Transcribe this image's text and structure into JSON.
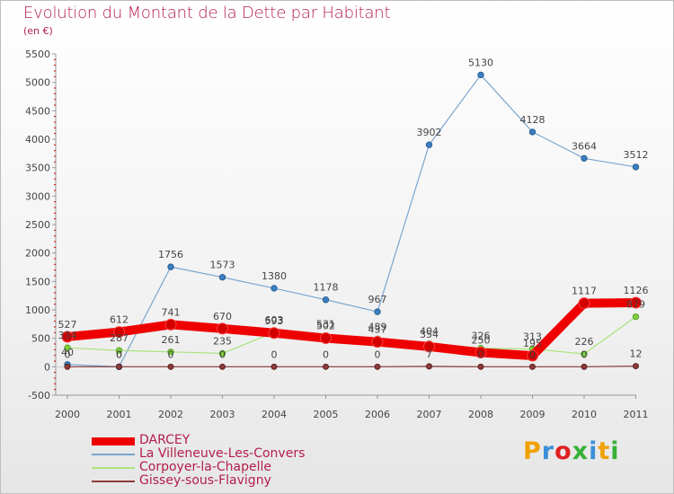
{
  "header": {
    "title": "Evolution du Montant de la Dette par Habitant",
    "unit": "(en €)"
  },
  "logo": {
    "text": "Proxiti",
    "colors": [
      "#f0a000",
      "#3a8fd8",
      "#e02020",
      "#38b038",
      "#3a8fd8",
      "#f0a000",
      "#38b038"
    ]
  },
  "chart_data": {
    "type": "line",
    "title": "Evolution du Montant de la Dette par Habitant",
    "subtitle": "(en €)",
    "xlabel": "",
    "ylabel": "",
    "x": [
      "2000",
      "2001",
      "2002",
      "2003",
      "2004",
      "2005",
      "2006",
      "2007",
      "2008",
      "2009",
      "2010",
      "2011"
    ],
    "ylim": [
      -500,
      5500
    ],
    "yticks": [
      -500,
      0,
      500,
      1000,
      1500,
      2000,
      2500,
      3000,
      3500,
      4000,
      4500,
      5000,
      5500
    ],
    "grid": false,
    "legend_position": "bottom-left",
    "series": [
      {
        "name": "DARCEY",
        "color": "#ee0000",
        "values": [
          527,
          612,
          741,
          670,
          593,
          502,
          437,
          354,
          250,
          195,
          1117,
          1126
        ],
        "labels": [
          "527",
          "612",
          "741",
          "670",
          "593",
          "502",
          "437",
          "354",
          "250",
          "195",
          "1117",
          "1126"
        ]
      },
      {
        "name": "La Villeneuve-Les-Convers",
        "color": "#7aa5cf",
        "values": [
          40,
          0,
          1756,
          1573,
          1380,
          1178,
          967,
          3902,
          5130,
          4128,
          3664,
          3512
        ],
        "labels": [
          "40",
          "0",
          "1756",
          "1573",
          "1380",
          "1178",
          "967",
          "3902",
          "5130",
          "4128",
          "3664",
          "3512"
        ]
      },
      {
        "name": "Corpoyer-la-Chapelle",
        "color": "#a9e37a",
        "values": [
          334,
          287,
          261,
          235,
          603,
          531,
          489,
          404,
          326,
          313,
          226,
          879
        ],
        "labels": [
          "334",
          "287",
          "261",
          "235",
          "603",
          "531",
          "489",
          "404",
          "326",
          "313",
          "226",
          "879"
        ]
      },
      {
        "name": "Gissey-sous-Flavigny",
        "color": "#8c3a3a",
        "values": [
          0,
          0,
          0,
          0,
          0,
          0,
          0,
          7,
          0,
          0,
          0,
          12
        ],
        "labels": [
          "0",
          "0",
          "0",
          "0",
          "0",
          "0",
          "0",
          "7",
          "0",
          "0",
          "0",
          "12"
        ]
      }
    ]
  }
}
